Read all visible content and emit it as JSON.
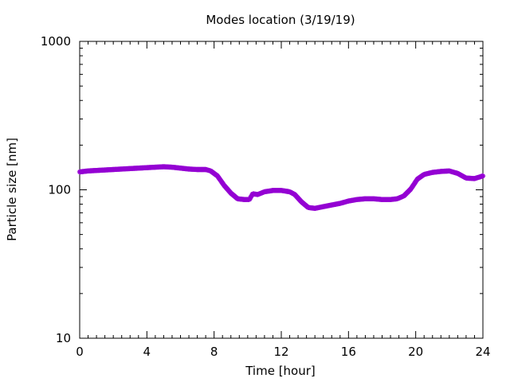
{
  "chart_data": {
    "type": "scatter",
    "title": "Modes location (3/19/19)",
    "xlabel": "Time [hour]",
    "ylabel": "Particle size [nm]",
    "xlim": [
      0,
      24
    ],
    "ylim": [
      10,
      1000
    ],
    "yscale": "log",
    "x_ticks": [
      0,
      4,
      8,
      12,
      16,
      20,
      24
    ],
    "x_tick_labels": [
      "0",
      "4",
      "8",
      "12",
      "16",
      "20",
      "24"
    ],
    "y_ticks": [
      10,
      100,
      1000
    ],
    "y_tick_labels": [
      "10",
      "100",
      "1000"
    ],
    "grid": false,
    "marker_color": "#9400d3",
    "series": [
      {
        "x": [
          0,
          0.5,
          1,
          1.5,
          2,
          2.5,
          3,
          3.5,
          4,
          4.5,
          5,
          5.5,
          6,
          6.5,
          7,
          7.5,
          7.8,
          8.2,
          8.6,
          9,
          9.4,
          9.8,
          10.1,
          10.3,
          10.6,
          11,
          11.5,
          12,
          12.5,
          12.8,
          13.2,
          13.6,
          14,
          14.5,
          15,
          15.5,
          16,
          16.5,
          17,
          17.5,
          18,
          18.5,
          18.9,
          19.3,
          19.7,
          20.1,
          20.5,
          21,
          21.5,
          22,
          22.5,
          23,
          23.5,
          24
        ],
        "y": [
          132,
          134,
          135,
          136,
          137,
          138,
          139,
          140,
          141,
          142,
          143,
          142,
          140,
          138,
          137,
          137,
          134,
          124,
          107,
          95,
          87,
          86,
          86,
          94,
          93,
          97,
          99,
          99,
          97,
          93,
          83,
          76,
          75,
          77,
          79,
          81,
          84,
          86,
          87,
          87,
          86,
          86,
          87,
          91,
          101,
          118,
          127,
          131,
          133,
          134,
          129,
          120,
          119,
          124
        ]
      }
    ]
  }
}
